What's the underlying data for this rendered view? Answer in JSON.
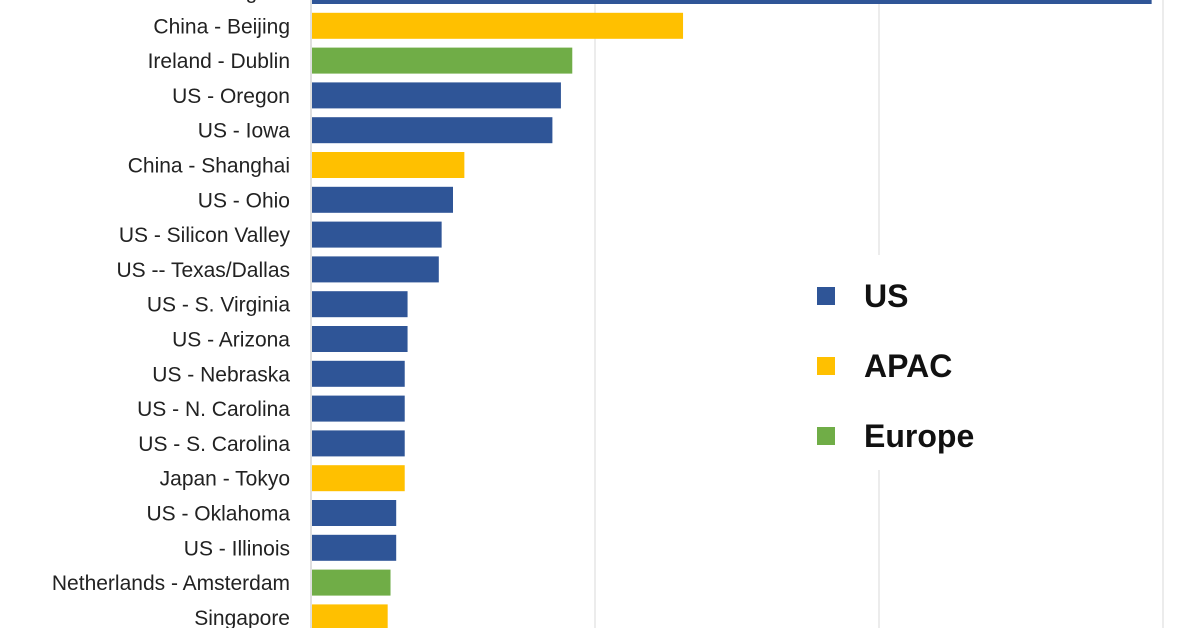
{
  "chart_data": {
    "type": "bar",
    "orientation": "horizontal",
    "grid": true,
    "legend_position": "center-right",
    "xlim": [
      0,
      3
    ],
    "categories": [
      "US - Virginia",
      "China - Beijing",
      "Ireland - Dublin",
      "US - Oregon",
      "US - Iowa",
      "China - Shanghai",
      "US - Ohio",
      "US - Silicon Valley",
      "US -- Texas/Dallas",
      "US - S. Virginia",
      "US - Arizona",
      "US - Nebraska",
      "US - N. Carolina",
      "US - S. Carolina",
      "Japan - Tokyo",
      "US - Oklahoma",
      "US - Illinois",
      "Netherlands - Amsterdam",
      "Singapore"
    ],
    "values": [
      2.96,
      1.31,
      0.92,
      0.88,
      0.85,
      0.54,
      0.5,
      0.46,
      0.45,
      0.34,
      0.34,
      0.33,
      0.33,
      0.33,
      0.33,
      0.3,
      0.3,
      0.28,
      0.27
    ],
    "groups": [
      "US",
      "APAC",
      "Europe",
      "US",
      "US",
      "APAC",
      "US",
      "US",
      "US",
      "US",
      "US",
      "US",
      "US",
      "US",
      "APAC",
      "US",
      "US",
      "Europe",
      "APAC"
    ],
    "legend": [
      {
        "name": "US",
        "color": "#2F5597"
      },
      {
        "name": "APAC",
        "color": "#FFC000"
      },
      {
        "name": "Europe",
        "color": "#70AD47"
      }
    ]
  }
}
